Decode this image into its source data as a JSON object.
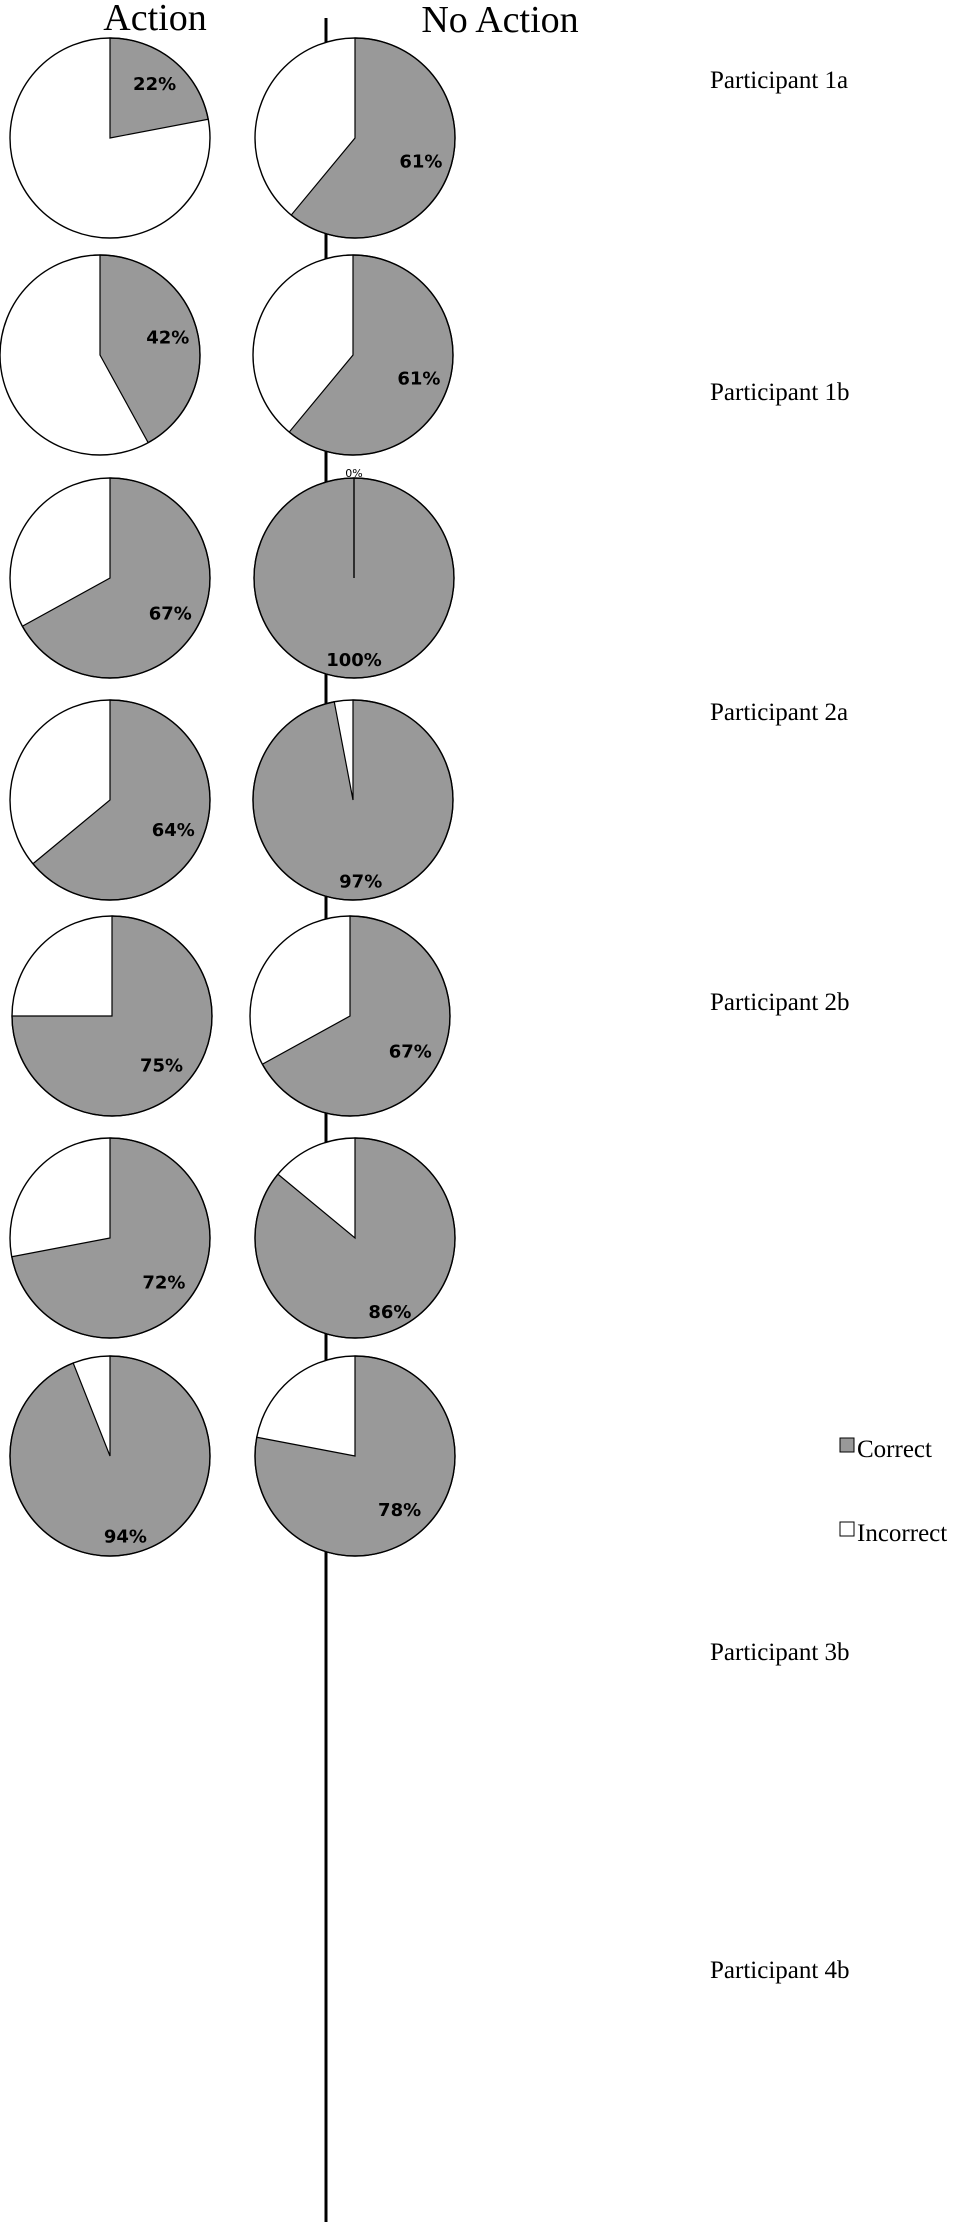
{
  "colors": {
    "correct": "#999999",
    "incorrect": "#ffffff",
    "stroke": "#000000"
  },
  "chart_data": {
    "type": "pie",
    "columns": [
      "Action",
      "No Action"
    ],
    "legend": {
      "entries": [
        "Correct",
        "Incorrect"
      ],
      "placement": "right"
    },
    "rows": [
      {
        "label": "Participant 1a",
        "action": {
          "correct": 22,
          "incorrect": 78,
          "label": "22%"
        },
        "no_action": {
          "correct": 61,
          "incorrect": 39,
          "label": "61%"
        }
      },
      {
        "label": "Participant 1b",
        "action": {
          "correct": 42,
          "incorrect": 58,
          "label": "42%"
        },
        "no_action": {
          "correct": 61,
          "incorrect": 39,
          "label": "61%"
        }
      },
      {
        "label": "Participant 2a",
        "action": {
          "correct": 67,
          "incorrect": 33,
          "label": "67%"
        },
        "no_action": {
          "correct": 100,
          "incorrect": 0,
          "label": "100%",
          "incorrect_label": "0%"
        }
      },
      {
        "label": "Participant 2b",
        "action": {
          "correct": 64,
          "incorrect": 36,
          "label": "64%"
        },
        "no_action": {
          "correct": 97,
          "incorrect": 3,
          "label": "97%"
        }
      },
      {
        "label": "",
        "action": {
          "correct": 75,
          "incorrect": 25,
          "label": "75%"
        },
        "no_action": {
          "correct": 67,
          "incorrect": 33,
          "label": "67%"
        }
      },
      {
        "label": "Participant 3b",
        "action": {
          "correct": 72,
          "incorrect": 28,
          "label": "72%"
        },
        "no_action": {
          "correct": 86,
          "incorrect": 14,
          "label": "86%"
        }
      },
      {
        "label": "Participant 4b",
        "action": {
          "correct": 94,
          "incorrect": 6,
          "label": "94%"
        },
        "no_action": {
          "correct": 78,
          "incorrect": 22,
          "label": "78%"
        }
      }
    ]
  }
}
